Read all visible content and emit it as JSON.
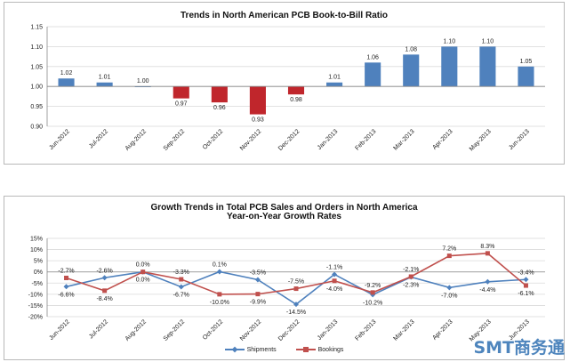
{
  "chart_data": [
    {
      "type": "bar",
      "title": "Trends in North American PCB Book-to-Bill Ratio",
      "categories": [
        "Jun-2012",
        "Jul-2012",
        "Aug-2012",
        "Sep-2012",
        "Oct-2012",
        "Nov-2012",
        "Dec-2012",
        "Jan-2013",
        "Feb-2013",
        "Mar-2013",
        "Apr-2013",
        "May-2013",
        "Jun-2013"
      ],
      "values": [
        1.02,
        1.01,
        1.0,
        0.97,
        0.96,
        0.93,
        0.98,
        1.01,
        1.06,
        1.08,
        1.1,
        1.1,
        1.05
      ],
      "data_labels": [
        "1.02",
        "1.01",
        "1.00",
        "0.97",
        "0.96",
        "0.93",
        "0.98",
        "1.01",
        "1.06",
        "1.08",
        "1.10",
        "1.10",
        "1.05"
      ],
      "baseline": 1.0,
      "ylim": [
        0.9,
        1.15
      ],
      "yticks": [
        "0.90",
        "0.95",
        "1.00",
        "1.05",
        "1.10",
        "1.15"
      ],
      "colors": {
        "above": "#4f81bd",
        "below": "#c0262c"
      },
      "grid": "horizontal"
    },
    {
      "type": "line",
      "title": "Growth Trends in Total PCB Sales and Orders in North America",
      "subtitle": "Year-on-Year Growth Rates",
      "categories": [
        "Jun-2012",
        "Jul-2012",
        "Aug-2012",
        "Sep-2012",
        "Oct-2012",
        "Nov-2012",
        "Dec-2012",
        "Jan-2013",
        "Feb-2013",
        "Mar-2013",
        "Apr-2013",
        "May-2013",
        "Jun-2013"
      ],
      "series": [
        {
          "name": "Shipments",
          "color": "#4f81bd",
          "marker": "diamond",
          "values": [
            -6.6,
            -2.6,
            0.0,
            -6.7,
            0.1,
            -3.5,
            -14.5,
            -1.1,
            -10.2,
            -2.3,
            -7.0,
            -4.4,
            -3.4
          ],
          "labels": [
            "-6.6%",
            "-2.6%",
            "0.0%",
            "-6.7%",
            "0.1%",
            "-3.5%",
            "-14.5%",
            "-1.1%",
            "-10.2%",
            "-2.3%",
            "-7.0%",
            "-4.4%",
            "-3.4%"
          ]
        },
        {
          "name": "Bookings",
          "color": "#c0504d",
          "marker": "square",
          "values": [
            -2.7,
            -8.4,
            0.0,
            -3.3,
            -10.0,
            -9.9,
            -7.5,
            -4.0,
            -9.2,
            -2.1,
            7.2,
            8.3,
            -6.1
          ],
          "labels": [
            "-2.7%",
            "-8.4%",
            "0.0%",
            "-3.3%",
            "-10.0%",
            "-9.9%",
            "-7.5%",
            "-4.0%",
            "-9.2%",
            "-2.1%",
            "7.2%",
            "8.3%",
            "-6.1%"
          ]
        }
      ],
      "ylim": [
        -20,
        15
      ],
      "yticks": [
        "15%",
        "10%",
        "5%",
        "0%",
        "-5%",
        "-10%",
        "-15%",
        "-20%"
      ],
      "legend": "bottom",
      "grid": "horizontal"
    }
  ],
  "watermark": "SMT商务通"
}
